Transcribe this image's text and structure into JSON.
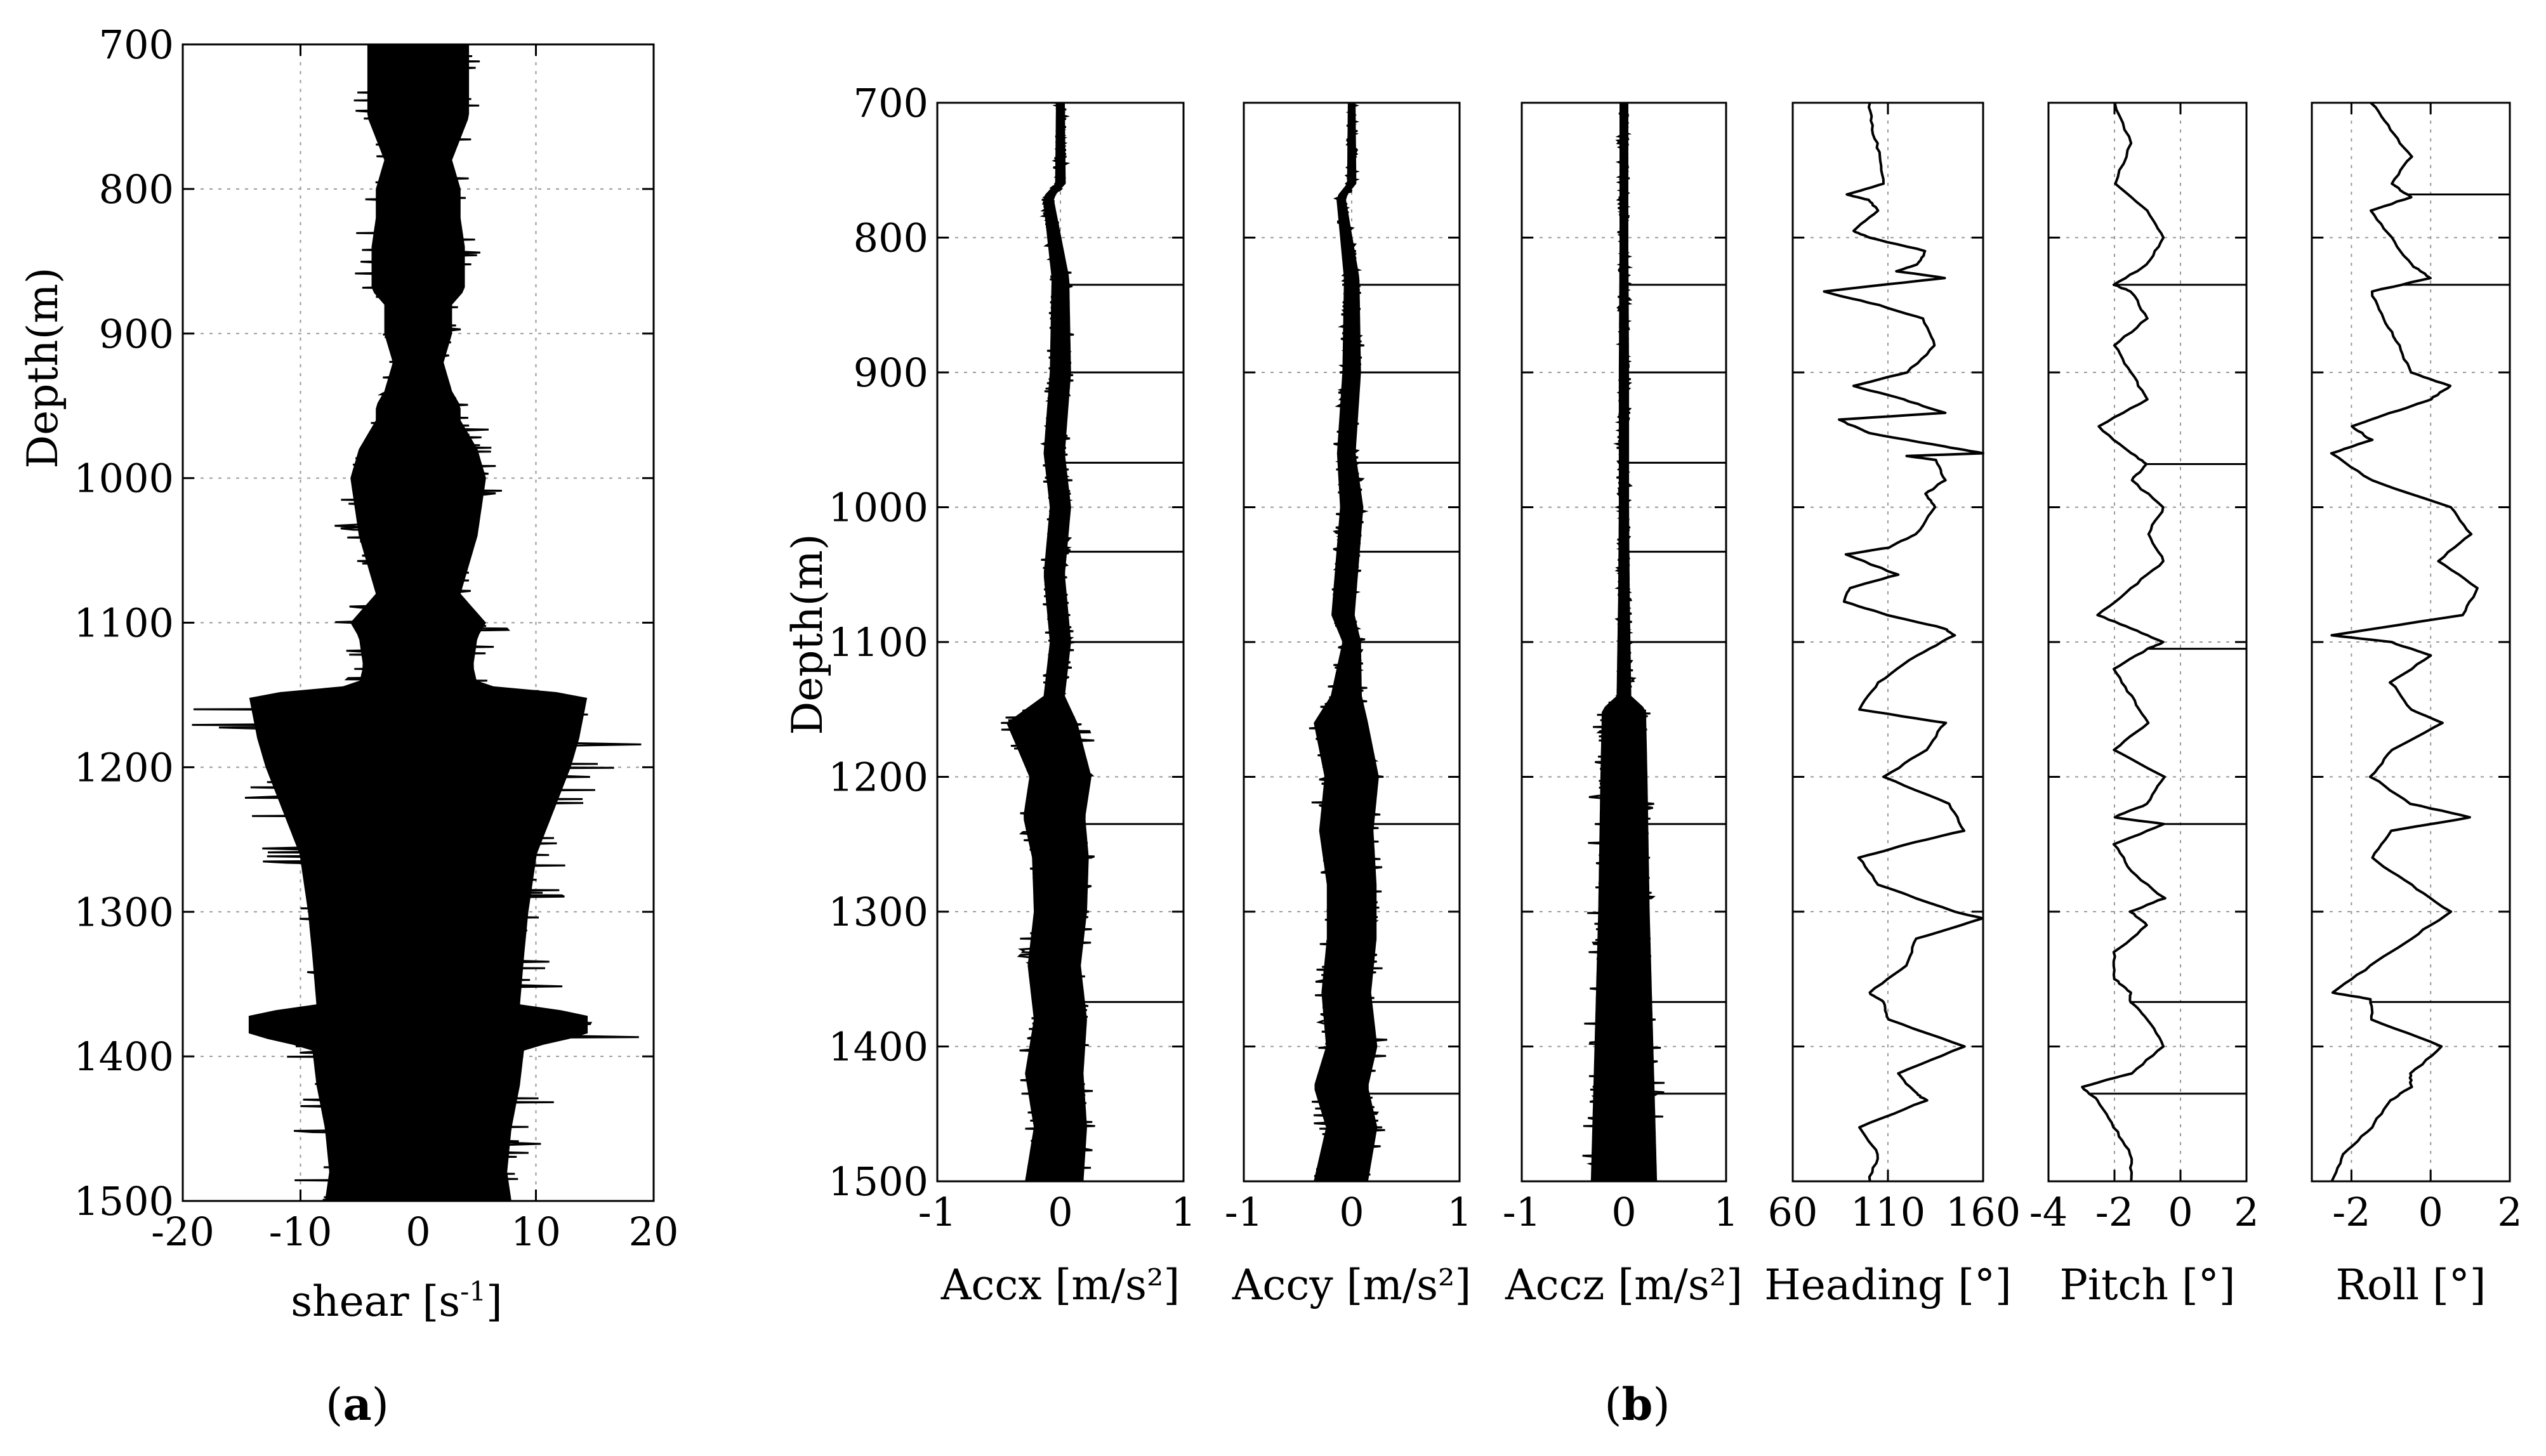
{
  "chart_data": [
    {
      "type": "line",
      "panel_label": {
        "open": "(",
        "letter": "a",
        "close": ")"
      },
      "ylabel": "Depth(m)",
      "xlabel": "shear [s",
      "xlabel_exp": "-1",
      "xlabel_close": "]",
      "xlim": [
        -20,
        20
      ],
      "ylim": [
        1500,
        700
      ],
      "xticks": [
        "-20",
        "-10",
        "0",
        "10",
        "20"
      ],
      "yticks": [
        "700",
        "800",
        "900",
        "1000",
        "1100",
        "1200",
        "1300",
        "1400",
        "1500"
      ],
      "grid": true,
      "series": [
        {
          "style": "dense-noise",
          "depth": [
            700,
            720,
            750,
            780,
            800,
            820,
            840,
            870,
            880,
            900,
            920,
            940,
            950,
            960,
            980,
            1000,
            1020,
            1040,
            1060,
            1080,
            1100,
            1110,
            1130,
            1143,
            1150,
            1180,
            1200,
            1230,
            1260,
            1300,
            1330,
            1365,
            1370,
            1385,
            1395,
            1420,
            1450,
            1480,
            1500
          ],
          "amplitude": [
            6,
            6,
            6,
            4,
            5,
            5,
            5.5,
            5.5,
            4,
            4,
            3,
            4,
            5,
            5,
            7,
            8,
            7.5,
            7,
            6,
            5,
            8,
            7,
            6.5,
            7,
            20,
            19,
            18,
            16,
            14,
            13,
            12.5,
            12,
            20,
            20,
            12.5,
            12,
            11,
            10.5,
            11
          ]
        }
      ]
    },
    {
      "type": "line",
      "panel_label": {
        "open": "(",
        "letter": "b",
        "close": ")"
      },
      "ylabel": "Depth(m)",
      "ylim": [
        1500,
        700
      ],
      "yticks": [
        "700",
        "800",
        "900",
        "1000",
        "1100",
        "1200",
        "1300",
        "1400",
        "1500"
      ],
      "grid": true,
      "subplots": [
        {
          "xlabel": "Accx [m/s²]",
          "xlim": [
            -1,
            1
          ],
          "xticks": [
            "-1",
            "0",
            "1"
          ],
          "series": [
            {
              "style": "dense-noise",
              "depth": [
                700,
                760,
                770,
                830,
                900,
                960,
                1000,
                1050,
                1100,
                1140,
                1160,
                1200,
                1230,
                1260,
                1300,
                1340,
                1380,
                1420,
                1460,
                1500
              ],
              "center": [
                0,
                0,
                -0.1,
                0,
                0,
                -0.05,
                0,
                -0.05,
                0,
                -0.05,
                -0.15,
                0,
                -0.05,
                0,
                0,
                -0.05,
                0,
                -0.05,
                0,
                -0.05
              ],
              "amplitude": [
                0.05,
                0.06,
                0.06,
                0.1,
                0.12,
                0.12,
                0.12,
                0.12,
                0.12,
                0.12,
                0.4,
                0.35,
                0.35,
                0.32,
                0.3,
                0.3,
                0.3,
                0.33,
                0.3,
                0.33
              ],
              "spikes": [
                835,
                900,
                967,
                1033,
                1100,
                1235,
                1367
              ]
            }
          ]
        },
        {
          "xlabel": "Accy [m/s²]",
          "xlim": [
            -1,
            1
          ],
          "xticks": [
            "-1",
            "0",
            "1"
          ],
          "series": [
            {
              "style": "dense-noise",
              "depth": [
                700,
                760,
                770,
                830,
                900,
                960,
                1000,
                1050,
                1080,
                1100,
                1140,
                1160,
                1200,
                1240,
                1280,
                1320,
                1360,
                1400,
                1430,
                1460,
                1500
              ],
              "center": [
                0,
                0,
                -0.1,
                0,
                0,
                -0.05,
                0,
                -0.05,
                -0.08,
                0,
                -0.05,
                -0.1,
                0,
                -0.05,
                0,
                0,
                -0.05,
                0,
                -0.1,
                0,
                -0.1
              ],
              "amplitude": [
                0.05,
                0.06,
                0.06,
                0.1,
                0.12,
                0.12,
                0.15,
                0.15,
                0.15,
                0.12,
                0.2,
                0.35,
                0.35,
                0.35,
                0.32,
                0.32,
                0.32,
                0.33,
                0.35,
                0.33,
                0.35
              ],
              "spikes": [
                835,
                900,
                967,
                1033,
                1100,
                1235,
                1367,
                1435
              ]
            }
          ]
        },
        {
          "xlabel": "Accz [m/s²]",
          "xlim": [
            -1,
            1
          ],
          "xticks": [
            "-1",
            "0",
            "1"
          ],
          "series": [
            {
              "style": "dense-noise",
              "depth": [
                700,
                800,
                900,
                1000,
                1070,
                1140,
                1150,
                1200,
                1300,
                1400,
                1500
              ],
              "center": [
                0,
                0,
                0,
                0,
                0,
                0,
                0,
                0,
                0,
                0,
                0
              ],
              "amplitude": [
                0.06,
                0.06,
                0.07,
                0.07,
                0.08,
                0.1,
                0.3,
                0.32,
                0.35,
                0.4,
                0.45
              ],
              "spikes": [
                835,
                900,
                967,
                1033,
                1100,
                1235,
                1367,
                1435
              ]
            }
          ]
        },
        {
          "xlabel": "Heading [°]",
          "xlim": [
            60,
            160
          ],
          "xticks": [
            "60",
            "110",
            "160"
          ],
          "series": [
            {
              "style": "line",
              "depth": [
                700,
                720,
                740,
                760,
                768,
                772,
                780,
                795,
                800,
                810,
                820,
                825,
                830,
                840,
                850,
                860,
                880,
                900,
                910,
                920,
                930,
                935,
                945,
                955,
                960,
                962,
                965,
                980,
                990,
                1000,
                1020,
                1030,
                1035,
                1050,
                1060,
                1070,
                1080,
                1090,
                1095,
                1110,
                1130,
                1150,
                1160,
                1180,
                1200,
                1220,
                1240,
                1250,
                1260,
                1280,
                1300,
                1305,
                1320,
                1340,
                1360,
                1367,
                1380,
                1400,
                1420,
                1435,
                1440,
                1460,
                1480,
                1500
              ],
              "x": [
                100,
                102,
                106,
                108,
                88,
                100,
                105,
                92,
                100,
                130,
                125,
                115,
                140,
                76,
                105,
                128,
                135,
                120,
                92,
                118,
                140,
                84,
                100,
                140,
                160,
                120,
                135,
                140,
                130,
                135,
                125,
                110,
                88,
                115,
                90,
                87,
                110,
                140,
                145,
                125,
                105,
                95,
                140,
                130,
                108,
                142,
                150,
                120,
                95,
                105,
                145,
                160,
                125,
                120,
                100,
                108,
                110,
                150,
                115,
                125,
                130,
                95,
                105,
                100
              ]
            }
          ]
        },
        {
          "xlabel": "Pitch [°]",
          "xlim": [
            -4,
            2
          ],
          "xticks": [
            "-4",
            "-2",
            "0",
            "2"
          ],
          "series": [
            {
              "style": "line",
              "depth": [
                700,
                730,
                760,
                780,
                800,
                820,
                835,
                840,
                860,
                880,
                900,
                920,
                940,
                960,
                968,
                980,
                1000,
                1020,
                1040,
                1060,
                1080,
                1090,
                1100,
                1105,
                1120,
                1140,
                1160,
                1180,
                1200,
                1220,
                1230,
                1235,
                1250,
                1270,
                1290,
                1300,
                1310,
                1330,
                1350,
                1360,
                1367,
                1380,
                1400,
                1420,
                1430,
                1440,
                1460,
                1480,
                1500
              ],
              "x": [
                -2,
                -1.5,
                -2,
                -1,
                -0.5,
                -1,
                -2,
                -1.5,
                -1,
                -2,
                -1.5,
                -1,
                -2.5,
                -1.5,
                -1,
                -1.5,
                -0.5,
                -1,
                -0.5,
                -1.5,
                -2.5,
                -1.5,
                -0.5,
                -1,
                -2,
                -1.5,
                -1,
                -2,
                -0.5,
                -1,
                -2,
                -0.5,
                -2,
                -1.5,
                -0.5,
                -1.5,
                -1,
                -2,
                -2,
                -1.5,
                -1.5,
                -1,
                -0.5,
                -1.5,
                -3,
                -2.5,
                -2,
                -1.5,
                -1.5
              ],
              "spikes": [
                835,
                968,
                1105,
                1235,
                1367,
                1435
              ]
            }
          ]
        },
        {
          "xlabel": "Roll [°]",
          "xlim": [
            -3,
            2
          ],
          "xticks": [
            "-2",
            "0",
            "2"
          ],
          "series": [
            {
              "style": "line",
              "depth": [
                700,
                720,
                740,
                760,
                770,
                780,
                800,
                820,
                830,
                840,
                860,
                880,
                900,
                910,
                920,
                930,
                940,
                950,
                960,
                980,
                1000,
                1020,
                1040,
                1060,
                1080,
                1095,
                1100,
                1110,
                1130,
                1150,
                1160,
                1180,
                1200,
                1220,
                1230,
                1240,
                1260,
                1280,
                1300,
                1320,
                1340,
                1360,
                1365,
                1380,
                1400,
                1420,
                1430,
                1440,
                1460,
                1480,
                1500
              ],
              "x": [
                -1.5,
                -1,
                -0.5,
                -1,
                -0.5,
                -1.5,
                -1,
                -0.5,
                0,
                -1.5,
                -1.2,
                -0.8,
                -0.5,
                0.5,
                0,
                -1,
                -2,
                -1.5,
                -2.5,
                -1.5,
                0.5,
                1,
                0.2,
                1.2,
                0.8,
                -2.5,
                -1,
                0,
                -1,
                -0.5,
                0.3,
                -1,
                -1.5,
                -0.5,
                1,
                -1,
                -1.5,
                -0.5,
                0.5,
                -0.5,
                -1.5,
                -2.5,
                -1.5,
                -1.5,
                0.3,
                -0.5,
                -0.5,
                -1,
                -1.5,
                -2.2,
                -2.5
              ],
              "spikes": [
                768,
                835,
                1367
              ]
            }
          ]
        }
      ]
    }
  ]
}
